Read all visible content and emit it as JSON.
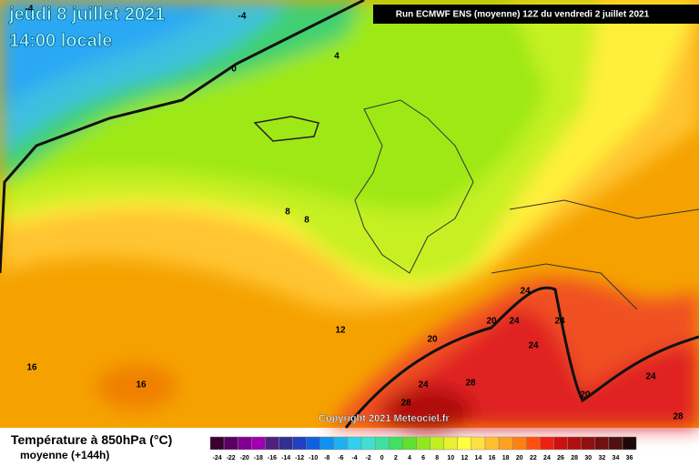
{
  "header": {
    "date": "jeudi 8 juillet 2021",
    "time": "14:00 locale",
    "run": "Run ECMWF ENS (moyenne) 12Z du vendredi 2 juillet 2021"
  },
  "copyright": "Copyright 2021 Meteociel.fr",
  "legend": {
    "title": "Température à 850hPa (°C)",
    "subtitle": "moyenne  (+144h)",
    "ticks": [
      -24,
      -22,
      -20,
      -18,
      -16,
      -14,
      -12,
      -10,
      -8,
      -6,
      -4,
      -2,
      0,
      2,
      4,
      6,
      8,
      10,
      12,
      14,
      16,
      18,
      20,
      22,
      24,
      26,
      28,
      30,
      32,
      34,
      36
    ]
  },
  "contour_labels": [
    "-4",
    "-4",
    "0",
    "4",
    "8",
    "8",
    "12",
    "16",
    "16",
    "20",
    "20",
    "24",
    "24",
    "24",
    "24",
    "28",
    "28",
    "24",
    "20",
    "24",
    "28"
  ]
}
